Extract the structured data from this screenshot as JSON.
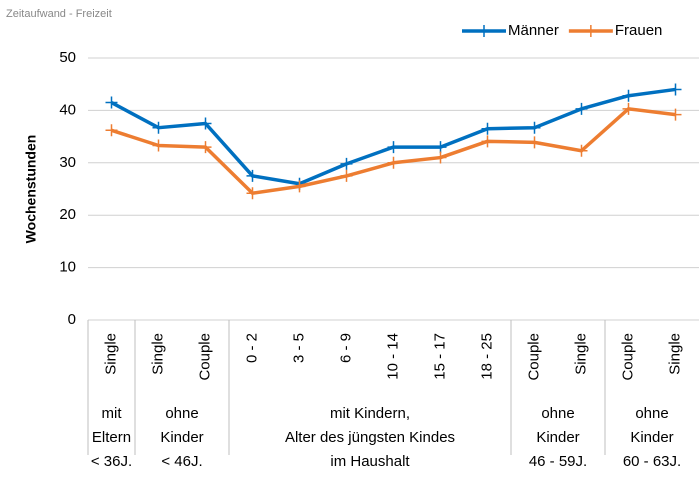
{
  "chart_data": {
    "type": "line",
    "subtitle": "Zeitaufwand - Freizeit",
    "y_label": "Wochenstunden",
    "categories": [
      "Single",
      "Single",
      "Couple",
      "0 - 2",
      "3 - 5",
      "6 - 9",
      "10 - 14",
      "15 - 17",
      "18 - 25",
      "Couple",
      "Single",
      "Couple",
      "Single"
    ],
    "groups": [
      {
        "lines": [
          "mit",
          "Eltern",
          "< 36J."
        ],
        "span": 1
      },
      {
        "lines": [
          "ohne",
          "Kinder",
          "< 46J."
        ],
        "span": 2
      },
      {
        "lines": [
          "mit Kindern,",
          "Alter des jüngsten Kindes",
          "im Haushalt"
        ],
        "span": 6
      },
      {
        "lines": [
          "ohne",
          "Kinder",
          "46 - 59J."
        ],
        "span": 2
      },
      {
        "lines": [
          "ohne",
          "Kinder",
          "60 - 63J."
        ],
        "span": 2
      }
    ],
    "series": [
      {
        "name": "Männer",
        "color": "#0070c0",
        "values": [
          41.5,
          36.7,
          37.5,
          27.5,
          26,
          29.8,
          33,
          33,
          36.5,
          36.7,
          40.3,
          42.8,
          44
        ]
      },
      {
        "name": "Frauen",
        "color": "#ed7d31",
        "values": [
          36.2,
          33.3,
          33,
          24.2,
          25.5,
          27.5,
          30,
          31,
          34.1,
          33.9,
          32.3,
          40.3,
          39.2
        ]
      }
    ],
    "ylim": [
      0,
      50
    ],
    "yticks": [
      0,
      10,
      20,
      30,
      40,
      50
    ],
    "grid": true,
    "legend": "top-right"
  }
}
